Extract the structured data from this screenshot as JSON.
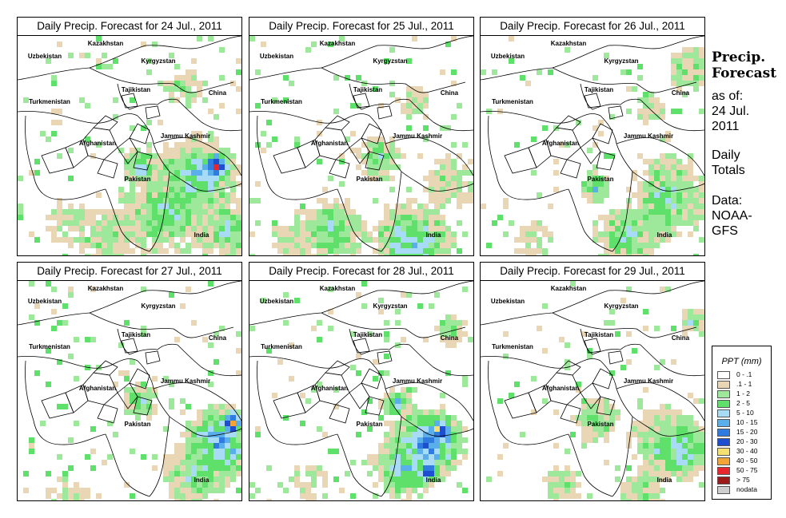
{
  "title_prefix": "Daily Precip. Forecast for",
  "panels": [
    {
      "date": "24 Jul., 2011",
      "pattern": 0
    },
    {
      "date": "25 Jul., 2011",
      "pattern": 1
    },
    {
      "date": "26 Jul., 2011",
      "pattern": 2
    },
    {
      "date": "27 Jul., 2011",
      "pattern": 3
    },
    {
      "date": "28 Jul., 2011",
      "pattern": 4
    },
    {
      "date": "29 Jul., 2011",
      "pattern": 5
    }
  ],
  "map_labels": [
    "Kazakhstan",
    "Uzbekistan",
    "Kyrgyzstan",
    "Tajikistan",
    "China",
    "Turkmenistan",
    "Afghanistan",
    "Jammu Kashmir",
    "Pakistan",
    "India"
  ],
  "side": {
    "title_line1": "Precip.",
    "title_line2": "Forecast",
    "asof": "as of:",
    "date_line1": "24 Jul.",
    "date_line2": "2011",
    "totals_line1": "Daily",
    "totals_line2": "Totals",
    "data_line1": "Data:",
    "data_line2": "NOAA-",
    "data_line3": "GFS"
  },
  "legend": {
    "title": "PPT (mm)",
    "entries": [
      {
        "label": "0 - .1",
        "color": "#ffffff"
      },
      {
        "label": ".1 - 1",
        "color": "#e9d6b4"
      },
      {
        "label": "1 - 2",
        "color": "#9de89a"
      },
      {
        "label": "2 - 5",
        "color": "#5fe06b"
      },
      {
        "label": "5 - 10",
        "color": "#a8dcf6"
      },
      {
        "label": "10 - 15",
        "color": "#5aaeea"
      },
      {
        "label": "15 - 20",
        "color": "#2f7be0"
      },
      {
        "label": "20 - 30",
        "color": "#1d4fd0"
      },
      {
        "label": "30 - 40",
        "color": "#f6e072"
      },
      {
        "label": "40 - 50",
        "color": "#f2a536"
      },
      {
        "label": "50 - 75",
        "color": "#e8262b"
      },
      {
        "label": "> 75",
        "color": "#9c1a17"
      },
      {
        "label": "nodata",
        "color": "#cfcfcf"
      }
    ]
  }
}
